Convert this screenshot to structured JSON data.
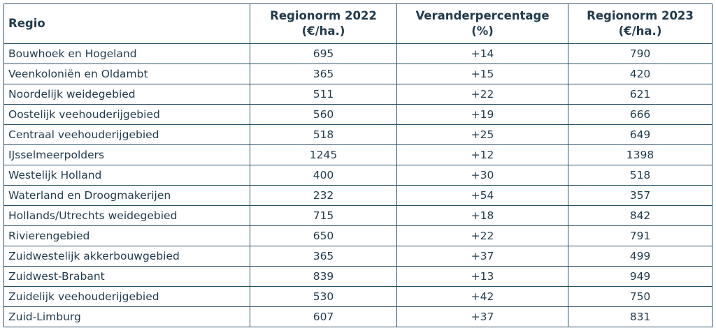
{
  "table": {
    "headers": [
      {
        "line1": "Regio",
        "line2": ""
      },
      {
        "line1": "Regionorm 2022",
        "line2": "(€/ha.)"
      },
      {
        "line1": "Veranderpercentage",
        "line2": "(%)"
      },
      {
        "line1": "Regionorm 2023",
        "line2": "(€/ha.)"
      }
    ],
    "rows": [
      [
        "Bouwhoek en Hogeland",
        "695",
        "+14",
        "790"
      ],
      [
        "Veenkoloniën en Oldambt",
        "365",
        "+15",
        "420"
      ],
      [
        "Noordelijk weidegebied",
        "511",
        "+22",
        "621"
      ],
      [
        "Oostelijk veehouderijgebied",
        "560",
        "+19",
        "666"
      ],
      [
        "Centraal veehouderijgebied",
        "518",
        "+25",
        "649"
      ],
      [
        "IJsselmeerpolders",
        "1245",
        "+12",
        "1398"
      ],
      [
        "Westelijk Holland",
        "400",
        "+30",
        "518"
      ],
      [
        "Waterland en Droogmakerijen",
        "232",
        "+54",
        "357"
      ],
      [
        "Hollands/Utrechts weidegebied",
        "715",
        "+18",
        "842"
      ],
      [
        "Rivierengebied",
        "650",
        "+22",
        "791"
      ],
      [
        "Zuidwestelijk akkerbouwgebied",
        "365",
        "+37",
        "499"
      ],
      [
        "Zuidwest-Brabant",
        "839",
        "+13",
        "949"
      ],
      [
        "Zuidelijk veehouderijgebied",
        "530",
        "+42",
        "750"
      ],
      [
        "Zuid-Limburg",
        "607",
        "+37",
        "831"
      ]
    ]
  },
  "colors": {
    "text": "#1f3b4d",
    "border": "#2a5068",
    "background": "#ffffff"
  }
}
